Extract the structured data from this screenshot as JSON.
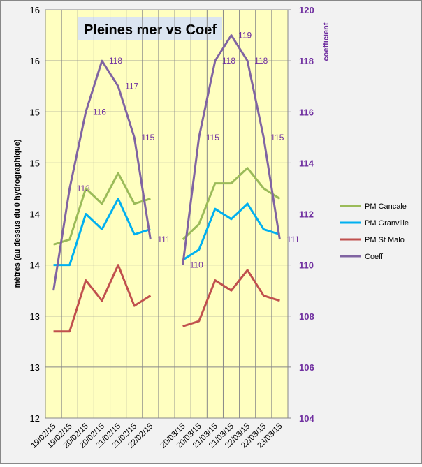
{
  "chart_data": {
    "type": "line",
    "title": "Pleines mer vs Coef",
    "y_label": "mètres (au dessus du 0 hydrographique)",
    "y2_label": "coefficient",
    "categories": [
      "19/02/15",
      "19/02/15",
      "20/02/15",
      "20/02/15",
      "21/02/15",
      "21/02/15",
      "22/02/15",
      null,
      "20/03/15",
      "20/03/15",
      "21/03/15",
      "21/03/15",
      "22/03/15",
      "22/03/15",
      "23/03/15"
    ],
    "ylim": [
      12,
      16
    ],
    "yticks": [
      12,
      {
        "value": 12.5,
        "label": "13"
      },
      13,
      {
        "value": 13.5,
        "label": "14"
      },
      14,
      {
        "value": 14.5,
        "label": "15"
      },
      15,
      {
        "value": 15.5,
        "label": "16"
      },
      16
    ],
    "y2lim": [
      104,
      120
    ],
    "y2ticks": [
      104,
      106,
      108,
      110,
      112,
      114,
      116,
      118,
      120
    ],
    "grid": true,
    "legend": "right",
    "series": [
      {
        "name": "PM Cancale",
        "color": "#9bbb59",
        "values": [
          13.7,
          13.75,
          14.25,
          14.1,
          14.4,
          14.1,
          14.15,
          null,
          13.75,
          13.9,
          14.3,
          14.3,
          14.45,
          14.25,
          14.15
        ]
      },
      {
        "name": "PM Granville",
        "color": "#00b0f0",
        "values": [
          13.5,
          13.5,
          14.0,
          13.85,
          14.15,
          13.8,
          13.85,
          null,
          13.55,
          13.65,
          14.05,
          13.95,
          14.1,
          13.85,
          13.8
        ]
      },
      {
        "name": "PM St Malo",
        "color": "#c0504d",
        "values": [
          12.85,
          12.85,
          13.35,
          13.15,
          13.5,
          13.1,
          13.2,
          null,
          12.9,
          12.95,
          13.35,
          13.25,
          13.45,
          13.2,
          13.15
        ]
      },
      {
        "name": "Coeff",
        "color": "#8064a2",
        "axis": "y2",
        "values": [
          109,
          113,
          116,
          118,
          117,
          115,
          111,
          null,
          110,
          115,
          118,
          119,
          118,
          115,
          111
        ],
        "value_labels": [
          null,
          "113",
          "116",
          "118",
          "117",
          "115",
          "111",
          null,
          "110",
          "115",
          "118",
          "119",
          "118",
          "115",
          "111"
        ]
      }
    ]
  }
}
